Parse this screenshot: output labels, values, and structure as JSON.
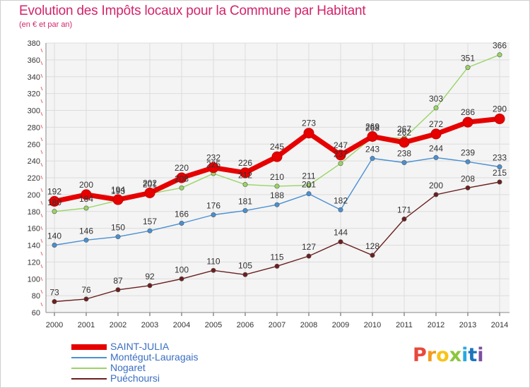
{
  "title": "Evolution des Impôts locaux pour la Commune par Habitant",
  "subtitle": "(en € et par an)",
  "logo": {
    "text": "Proxiti",
    "letters": [
      {
        "ch": "P",
        "color": "#e8483c"
      },
      {
        "ch": "r",
        "color": "#f39a1e"
      },
      {
        "ch": "o",
        "color": "#f7c31a"
      },
      {
        "ch": "x",
        "color": "#8cc63f"
      },
      {
        "ch": "i",
        "color": "#27aae1"
      },
      {
        "ch": "t",
        "color": "#1c75bc"
      },
      {
        "ch": "i",
        "color": "#7b4fa0"
      }
    ]
  },
  "chart_data": {
    "type": "line",
    "x": [
      2000,
      2001,
      2002,
      2003,
      2004,
      2005,
      2006,
      2007,
      2008,
      2009,
      2010,
      2011,
      2012,
      2013,
      2014
    ],
    "ylim": [
      60,
      380
    ],
    "yticks": [
      60,
      80,
      100,
      120,
      140,
      160,
      180,
      200,
      220,
      240,
      260,
      280,
      300,
      320,
      340,
      360,
      380
    ],
    "grid": true,
    "legend": "bottom-left",
    "series": [
      {
        "name": "SAINT-JULIA",
        "color": "#e60000",
        "emphasis": true,
        "values": [
          192,
          200,
          194,
          202,
          220,
          232,
          226,
          245,
          273,
          247,
          269,
          262,
          272,
          286,
          290
        ],
        "labels": [
          "192",
          "200",
          "194",
          "202",
          "220",
          "232",
          "226",
          "245",
          "273",
          "247",
          "269",
          "262",
          "272",
          "286",
          "290"
        ]
      },
      {
        "name": "Montégut-Lauragais",
        "color": "#4a90d2",
        "emphasis": false,
        "values": [
          140,
          146,
          150,
          157,
          166,
          176,
          181,
          188,
          201,
          182,
          243,
          238,
          244,
          239,
          233
        ],
        "labels": [
          "140",
          "146",
          "150",
          "157",
          "166",
          "176",
          "181",
          "188",
          "201",
          "182",
          "243",
          "238",
          "244",
          "239",
          "233"
        ]
      },
      {
        "name": "Nogaret",
        "color": "#99d466",
        "emphasis": false,
        "values": [
          180,
          184,
          193,
          201,
          208,
          225,
          212,
          210,
          211,
          237,
          268,
          267,
          303,
          351,
          366
        ],
        "labels": [
          "180",
          "184",
          "193",
          "201",
          "208",
          "225",
          "212",
          "210",
          "211",
          "237",
          "268",
          "267",
          "303",
          "351",
          "366"
        ]
      },
      {
        "name": "Puéchoursi",
        "color": "#6b1f1f",
        "emphasis": false,
        "values": [
          73,
          76,
          87,
          92,
          100,
          110,
          105,
          115,
          127,
          144,
          128,
          171,
          200,
          208,
          215
        ],
        "labels": [
          "73",
          "76",
          "87",
          "92",
          "100",
          "110",
          "105",
          "115",
          "127",
          "144",
          "128",
          "171",
          "200",
          "208",
          "215"
        ]
      }
    ]
  }
}
